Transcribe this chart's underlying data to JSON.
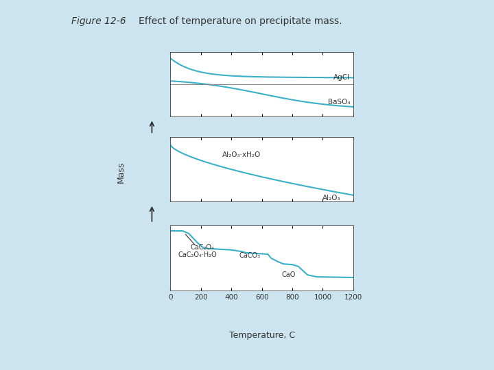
{
  "title_part1": "Figure 12-6",
  "title_part2": "Effect of temperature on precipitate mass.",
  "xlabel": "Temperature, C",
  "ylabel": "Mass",
  "xticks": [
    0,
    200,
    400,
    600,
    800,
    1000,
    1200
  ],
  "xlim": [
    0,
    1200
  ],
  "line_color": "#3ab0c8",
  "bg_color": "#ffffff",
  "fig_bg": "#cce4ef",
  "panel1_label1": "AgCl",
  "panel1_label2": "BaSO₄",
  "panel2_label1": "Al₂O₃·xH₂O",
  "panel2_label2": "Al₂O₃",
  "panel3_label1": "CaC₂O₄·H₂O",
  "panel3_label2": "CaC₂O₄",
  "panel3_label3": "CaCO₃",
  "panel3_label4": "CaO"
}
